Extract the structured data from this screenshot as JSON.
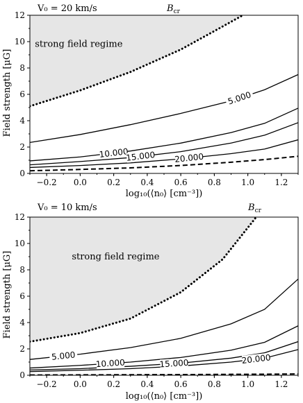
{
  "chart_data": [
    {
      "type": "line",
      "title": "V₀ = 20 km/s",
      "critical_label": "B",
      "critical_sub": "cr",
      "region_label": "strong field regime",
      "xlabel": "log₁₀(⟨n₀⟩ [cm⁻³])",
      "ylabel": "Field strength [μG]",
      "xlim": [
        -0.3,
        1.3
      ],
      "ylim": [
        0,
        12
      ],
      "xticks": [
        "−0.2",
        "0.0",
        "0.2",
        "0.4",
        "0.6",
        "0.8",
        "1.0",
        "1.2"
      ],
      "yticks": [
        "0",
        "2",
        "4",
        "6",
        "8",
        "10",
        "12"
      ],
      "critical_curve": {
        "style": "dotted",
        "x": [
          -0.3,
          0.0,
          0.3,
          0.6,
          0.8,
          0.97
        ],
        "y": [
          5.1,
          6.3,
          7.7,
          9.4,
          10.8,
          12.0
        ]
      },
      "contours": [
        {
          "label": "5.000",
          "x": [
            -0.3,
            0.0,
            0.3,
            0.6,
            0.9,
            1.1,
            1.3
          ],
          "y": [
            2.35,
            2.95,
            3.7,
            4.55,
            5.5,
            6.35,
            7.5
          ]
        },
        {
          "label": "10.000",
          "x": [
            -0.3,
            0.0,
            0.3,
            0.6,
            0.9,
            1.1,
            1.3
          ],
          "y": [
            0.95,
            1.25,
            1.7,
            2.3,
            3.1,
            3.8,
            4.95
          ]
        },
        {
          "label": "15.000",
          "x": [
            -0.3,
            0.0,
            0.3,
            0.6,
            0.9,
            1.1,
            1.3
          ],
          "y": [
            0.65,
            0.9,
            1.2,
            1.65,
            2.3,
            2.9,
            3.85
          ]
        },
        {
          "label": "20.000",
          "x": [
            -0.3,
            0.0,
            0.3,
            0.6,
            0.9,
            1.1,
            1.3
          ],
          "y": [
            0.45,
            0.6,
            0.8,
            1.1,
            1.5,
            1.85,
            2.55
          ]
        }
      ],
      "dashed_curve": {
        "x": [
          -0.3,
          0.0,
          0.3,
          0.6,
          0.9,
          1.1,
          1.3
        ],
        "y": [
          0.2,
          0.3,
          0.42,
          0.6,
          0.85,
          1.05,
          1.3
        ]
      }
    },
    {
      "type": "line",
      "title": "V₀ = 10 km/s",
      "critical_label": "B",
      "critical_sub": "cr",
      "region_label": "strong field regime",
      "xlabel": "log₁₀(⟨n₀⟩ [cm⁻³])",
      "ylabel": "Field strength [μG]",
      "xlim": [
        -0.3,
        1.3
      ],
      "ylim": [
        0,
        12
      ],
      "xticks": [
        "−0.2",
        "0.0",
        "0.2",
        "0.4",
        "0.6",
        "0.8",
        "1.0",
        "1.2"
      ],
      "yticks": [
        "0",
        "2",
        "4",
        "6",
        "8",
        "10",
        "12"
      ],
      "critical_curve": {
        "style": "dotted",
        "x": [
          -0.3,
          0.0,
          0.3,
          0.6,
          0.85,
          1.05
        ],
        "y": [
          2.55,
          3.2,
          4.3,
          6.3,
          8.8,
          12.0
        ]
      },
      "contours": [
        {
          "label": "5.000",
          "x": [
            -0.3,
            0.0,
            0.3,
            0.6,
            0.9,
            1.1,
            1.3
          ],
          "y": [
            1.2,
            1.6,
            2.1,
            2.8,
            3.9,
            5.0,
            7.3
          ]
        },
        {
          "label": "10.000",
          "x": [
            -0.3,
            0.0,
            0.3,
            0.6,
            0.9,
            1.1,
            1.3
          ],
          "y": [
            0.55,
            0.75,
            1.0,
            1.35,
            1.9,
            2.5,
            3.75
          ]
        },
        {
          "label": "15.000",
          "x": [
            -0.3,
            0.0,
            0.3,
            0.6,
            0.9,
            1.1,
            1.3
          ],
          "y": [
            0.4,
            0.5,
            0.68,
            0.92,
            1.3,
            1.7,
            2.55
          ]
        },
        {
          "label": "20.000",
          "x": [
            -0.3,
            0.0,
            0.3,
            0.6,
            0.9,
            1.1,
            1.3
          ],
          "y": [
            0.28,
            0.38,
            0.5,
            0.7,
            1.0,
            1.3,
            1.95
          ]
        }
      ],
      "dashed_curve": {
        "x": [
          -0.3,
          0.0,
          0.3,
          0.6,
          0.9,
          1.1,
          1.3
        ],
        "y": [
          0.02,
          0.03,
          0.04,
          0.05,
          0.07,
          0.08,
          0.1
        ]
      }
    }
  ]
}
